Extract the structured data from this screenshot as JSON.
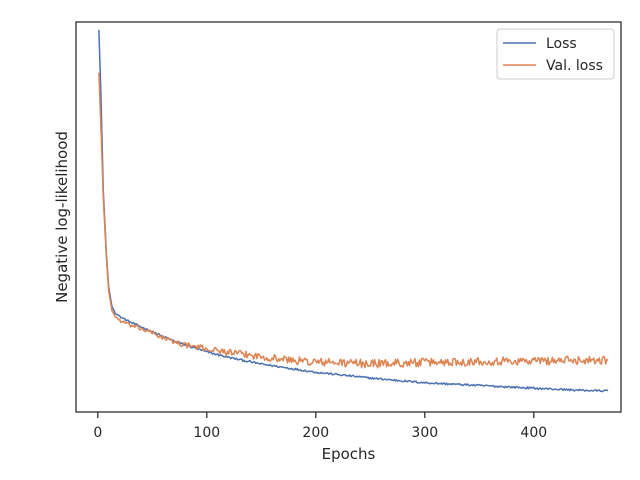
{
  "chart_data": {
    "type": "line",
    "xlabel": "Epochs",
    "ylabel": "Negative log-likelihood",
    "xlim": [
      -20,
      480
    ],
    "ylim": [
      0,
      100
    ],
    "xticks": [
      0,
      100,
      200,
      300,
      400
    ],
    "y_tick_labels_shown": false,
    "grid": false,
    "legend_position": "top-right",
    "n_epochs": 468,
    "series": [
      {
        "name": "Loss",
        "color": "#4c72b0",
        "noise": 0.25,
        "points": [
          [
            1,
            98
          ],
          [
            3,
            80
          ],
          [
            5,
            57
          ],
          [
            8,
            40
          ],
          [
            10,
            32
          ],
          [
            13,
            27
          ],
          [
            16,
            25.5
          ],
          [
            20,
            24.5
          ],
          [
            30,
            23
          ],
          [
            40,
            21.8
          ],
          [
            50,
            20.6
          ],
          [
            60,
            19.3
          ],
          [
            70,
            18.2
          ],
          [
            80,
            17.2
          ],
          [
            100,
            15.4
          ],
          [
            120,
            14.0
          ],
          [
            150,
            12.3
          ],
          [
            200,
            10.2
          ],
          [
            250,
            8.7
          ],
          [
            300,
            7.5
          ],
          [
            350,
            6.8
          ],
          [
            400,
            6.1
          ],
          [
            440,
            5.6
          ],
          [
            467,
            5.4
          ]
        ]
      },
      {
        "name": "Val. loss",
        "color": "#dd8452",
        "noise": 1.1,
        "points": [
          [
            1,
            87
          ],
          [
            3,
            72
          ],
          [
            5,
            55
          ],
          [
            8,
            39
          ],
          [
            10,
            31
          ],
          [
            13,
            26
          ],
          [
            16,
            24.5
          ],
          [
            20,
            23.5
          ],
          [
            30,
            22.2
          ],
          [
            40,
            21.3
          ],
          [
            50,
            20.3
          ],
          [
            60,
            19.0
          ],
          [
            70,
            18.0
          ],
          [
            80,
            17.2
          ],
          [
            100,
            16.2
          ],
          [
            120,
            15.3
          ],
          [
            150,
            14.2
          ],
          [
            180,
            13.2
          ],
          [
            200,
            12.8
          ],
          [
            250,
            12.4
          ],
          [
            300,
            12.7
          ],
          [
            350,
            13.0
          ],
          [
            400,
            13.1
          ],
          [
            440,
            13.3
          ],
          [
            467,
            13.4
          ]
        ]
      }
    ]
  }
}
